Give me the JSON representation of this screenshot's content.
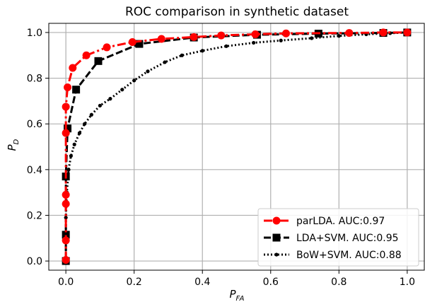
{
  "chart_data": {
    "type": "line",
    "title": "ROC comparison in synthetic dataset",
    "xlabel": "P",
    "xlabel_sub": "FA",
    "ylabel": "P",
    "ylabel_sub": "D",
    "xlim": [
      -0.05,
      1.05
    ],
    "ylim": [
      -0.04,
      1.04
    ],
    "grid": true,
    "legend_position": "bottom-right",
    "x_ticks": [
      0.0,
      0.2,
      0.4,
      0.6,
      0.8,
      1.0
    ],
    "x_tick_labels": [
      "0.0",
      "0.2",
      "0.4",
      "0.6",
      "0.8",
      "1.0"
    ],
    "y_ticks": [
      0.0,
      0.2,
      0.4,
      0.6,
      0.8,
      1.0
    ],
    "y_tick_labels": [
      "0.0",
      "0.2",
      "0.4",
      "0.6",
      "0.8",
      "1.0"
    ],
    "series": [
      {
        "name": "parLDA. AUC:0.97",
        "color": "#ff0000",
        "line": "dashdot",
        "marker": "circle",
        "points": [
          [
            0.0,
            0.005
          ],
          [
            0.0,
            0.09
          ],
          [
            0.0,
            0.25
          ],
          [
            0.0,
            0.29
          ],
          [
            0.0,
            0.56
          ],
          [
            0.0,
            0.675
          ],
          [
            0.005,
            0.76
          ],
          [
            0.02,
            0.845
          ],
          [
            0.06,
            0.9
          ],
          [
            0.12,
            0.935
          ],
          [
            0.195,
            0.958
          ],
          [
            0.28,
            0.972
          ],
          [
            0.375,
            0.98
          ],
          [
            0.455,
            0.987
          ],
          [
            0.555,
            0.992
          ],
          [
            0.645,
            0.996
          ],
          [
            0.83,
            0.998
          ],
          [
            0.93,
            1.0
          ],
          [
            1.0,
            1.0
          ]
        ]
      },
      {
        "name": "LDA+SVM. AUC:0.95",
        "color": "#000000",
        "line": "dashed",
        "marker": "square",
        "points": [
          [
            0.0,
            0.0
          ],
          [
            0.0,
            0.115
          ],
          [
            0.0,
            0.37
          ],
          [
            0.005,
            0.58
          ],
          [
            0.03,
            0.75
          ],
          [
            0.095,
            0.875
          ],
          [
            0.215,
            0.95
          ],
          [
            0.375,
            0.978
          ],
          [
            0.56,
            0.99
          ],
          [
            0.74,
            0.995
          ],
          [
            0.93,
            0.998
          ],
          [
            1.0,
            1.0
          ]
        ]
      },
      {
        "name": "BoW+SVM. AUC:0.88",
        "color": "#000000",
        "line": "dotted",
        "marker": "dot",
        "points": [
          [
            0.0,
            0.0
          ],
          [
            0.0,
            0.1
          ],
          [
            0.0,
            0.19
          ],
          [
            0.003,
            0.3
          ],
          [
            0.008,
            0.4
          ],
          [
            0.015,
            0.46
          ],
          [
            0.025,
            0.51
          ],
          [
            0.04,
            0.56
          ],
          [
            0.055,
            0.6
          ],
          [
            0.075,
            0.64
          ],
          [
            0.1,
            0.68
          ],
          [
            0.13,
            0.71
          ],
          [
            0.165,
            0.75
          ],
          [
            0.2,
            0.79
          ],
          [
            0.24,
            0.83
          ],
          [
            0.29,
            0.87
          ],
          [
            0.34,
            0.9
          ],
          [
            0.4,
            0.92
          ],
          [
            0.47,
            0.94
          ],
          [
            0.55,
            0.955
          ],
          [
            0.63,
            0.965
          ],
          [
            0.72,
            0.975
          ],
          [
            0.8,
            0.985
          ],
          [
            0.88,
            0.992
          ],
          [
            0.95,
            0.997
          ],
          [
            1.0,
            1.0
          ]
        ]
      }
    ]
  }
}
